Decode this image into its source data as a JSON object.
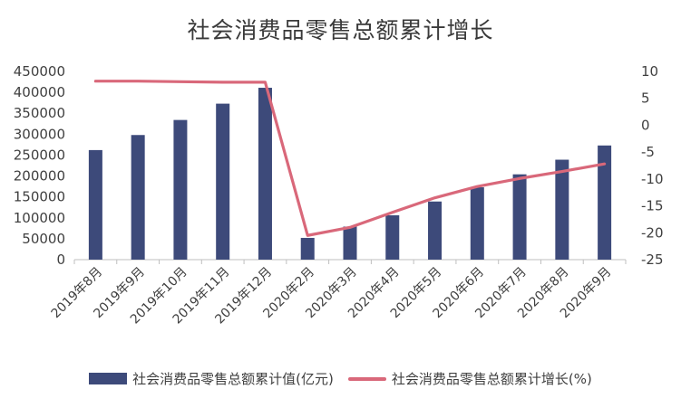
{
  "chart_data": {
    "type": "bar",
    "title": "社会消费品零售总额累计增长",
    "categories": [
      "2019年8月",
      "2019年9月",
      "2019年10月",
      "2019年11月",
      "2019年12月",
      "2020年2月",
      "2020年3月",
      "2020年4月",
      "2020年5月",
      "2020年6月",
      "2020年7月",
      "2020年8月",
      "2020年9月"
    ],
    "series": [
      {
        "name": "社会消费品零售总额累计值(亿元)",
        "type": "bar",
        "axis": "left",
        "color": "#3d4a7a",
        "values": [
          262000,
          298000,
          334000,
          373000,
          411000,
          52000,
          79000,
          106000,
          139000,
          173000,
          204000,
          239000,
          273000
        ]
      },
      {
        "name": "社会消费品零售总额累计增长(%)",
        "type": "line",
        "axis": "right",
        "color": "#d9687a",
        "values": [
          8.2,
          8.2,
          8.1,
          8.0,
          8.0,
          -20.5,
          -19.0,
          -16.2,
          -13.5,
          -11.4,
          -9.9,
          -8.6,
          -7.2
        ]
      }
    ],
    "ylim_left": [
      0,
      450000
    ],
    "yticks_left": [
      "0",
      "50000",
      "100000",
      "150000",
      "200000",
      "250000",
      "300000",
      "350000",
      "400000",
      "450000"
    ],
    "ylim_right": [
      -25,
      10
    ],
    "yticks_right": [
      "-25",
      "-20",
      "-15",
      "-10",
      "-5",
      "0",
      "5",
      "10"
    ],
    "grid": false,
    "legend_position": "bottom"
  }
}
